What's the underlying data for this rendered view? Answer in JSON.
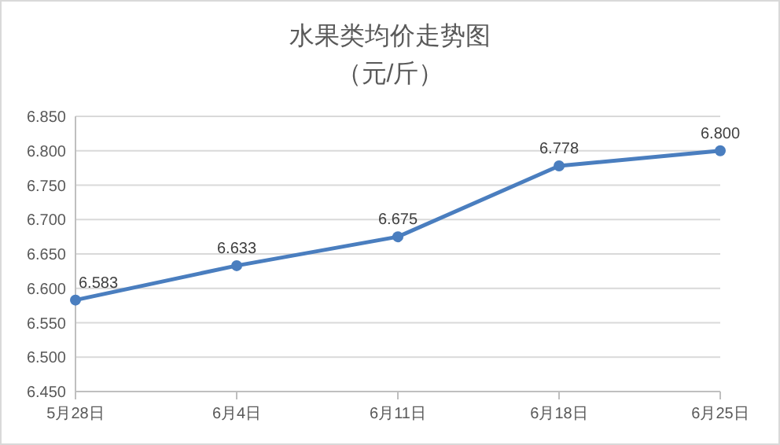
{
  "chart_data": {
    "type": "line",
    "title": "水果类均价走势图",
    "subtitle": "（元/斤）",
    "categories": [
      "5月28日",
      "6月4日",
      "6月11日",
      "6月18日",
      "6月25日"
    ],
    "series": [
      {
        "color": "#4a7ebf",
        "values": [
          6.583,
          6.633,
          6.675,
          6.778,
          6.8
        ],
        "value_labels": [
          "6.583",
          "6.633",
          "6.675",
          "6.778",
          "6.800"
        ]
      }
    ],
    "ylim": [
      6.45,
      6.85
    ],
    "yticks": [
      {
        "value": 6.45,
        "label": "6.450"
      },
      {
        "value": 6.5,
        "label": "6.500"
      },
      {
        "value": 6.55,
        "label": "6.550"
      },
      {
        "value": 6.6,
        "label": "6.600"
      },
      {
        "value": 6.65,
        "label": "6.650"
      },
      {
        "value": 6.7,
        "label": "6.700"
      },
      {
        "value": 6.75,
        "label": "6.750"
      },
      {
        "value": 6.8,
        "label": "6.800"
      },
      {
        "value": 6.85,
        "label": "6.850"
      }
    ],
    "grid": "y",
    "marker": "circle",
    "line_style": "solid"
  }
}
